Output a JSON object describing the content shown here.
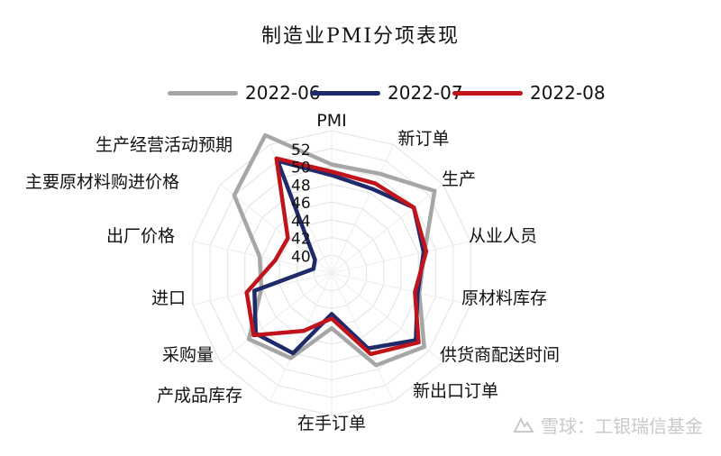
{
  "chart_data": {
    "type": "radar",
    "title": "制造业PMI分项表现",
    "categories": [
      "PMI",
      "新订单",
      "生产",
      "从业人员",
      "原材料库存",
      "供货商配送时间",
      "新出口订单",
      "在手订单",
      "产成品库存",
      "采购量",
      "进口",
      "出厂价格",
      "主要原材料购进价格",
      "生产经营活动预期"
    ],
    "radial_ticks": [
      40,
      42,
      44,
      46,
      48,
      50,
      52
    ],
    "rlim": [
      38,
      54
    ],
    "series": [
      {
        "name": "2022-06",
        "color": "#a6a6a6",
        "values": [
          50.2,
          50.4,
          52.8,
          48.7,
          48.1,
          51.3,
          49.5,
          44.2,
          48.6,
          49.9,
          46.1,
          46.3,
          52.0,
          55.2
        ]
      },
      {
        "name": "2022-07",
        "color": "#1f2a6b",
        "values": [
          49.0,
          48.5,
          49.8,
          48.6,
          47.9,
          50.1,
          47.4,
          42.6,
          48.0,
          48.9,
          46.9,
          40.1,
          40.4,
          52.0
        ]
      },
      {
        "name": "2022-08",
        "color": "#c0141c",
        "values": [
          49.4,
          49.2,
          49.8,
          48.9,
          47.6,
          50.5,
          48.1,
          43.1,
          45.2,
          49.2,
          47.8,
          44.5,
          44.3,
          52.3
        ]
      }
    ],
    "legend_position": "top",
    "grid": true
  },
  "watermark": "雪球：工银瑞信基金"
}
